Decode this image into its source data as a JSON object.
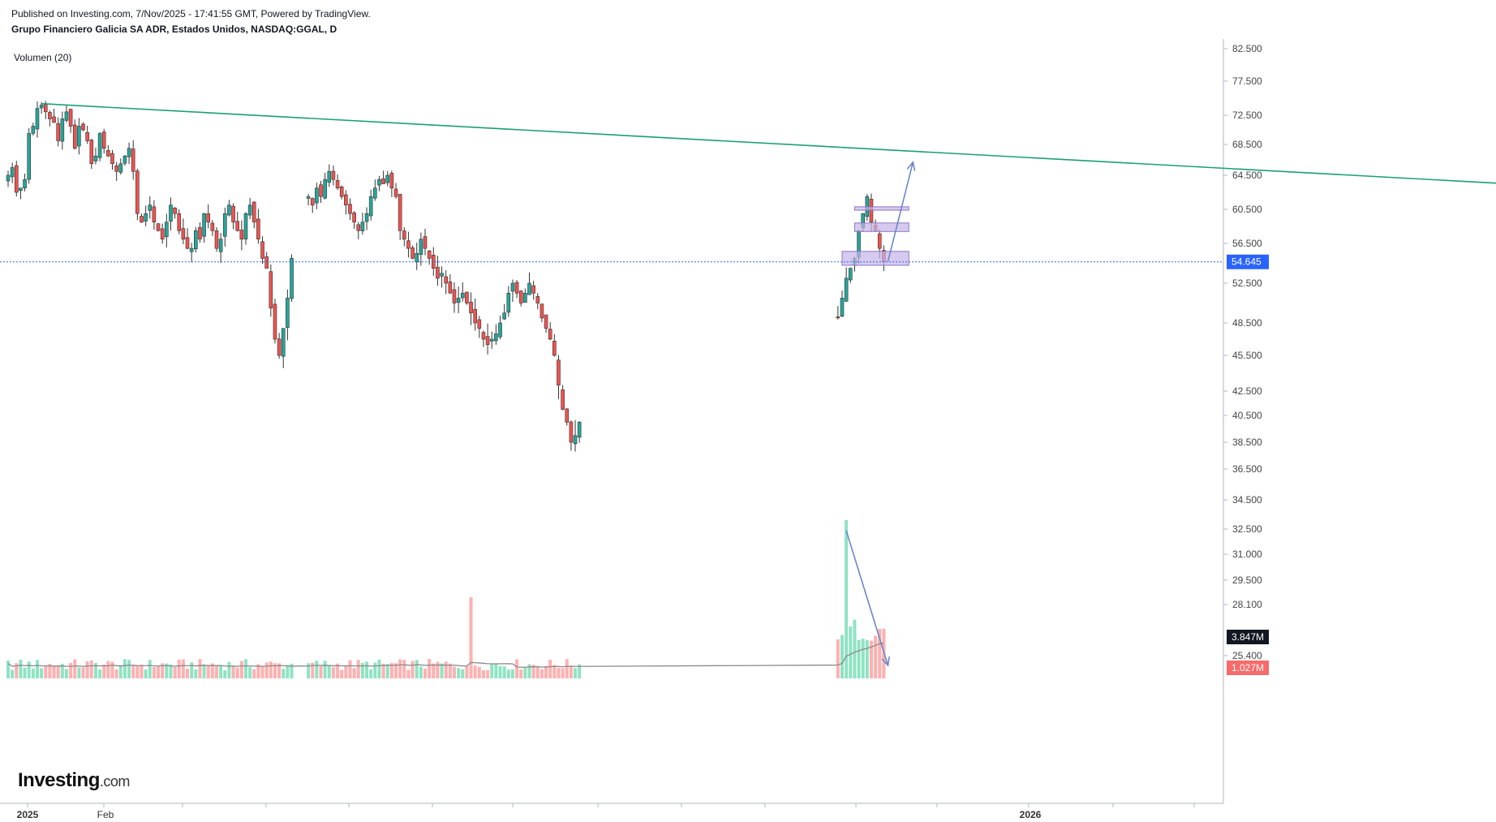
{
  "header": {
    "published": "Published on Investing.com, 7/Nov/2025 - 17:41:55 GMT, Powered by TradingView.",
    "symbol": "Grupo Financiero Galicia SA ADR, Estados Unidos, NASDAQ:GGAL, D"
  },
  "volume_label": "Volumen (20)",
  "logo": {
    "main": "Investing",
    "suffix": ".com"
  },
  "colors": {
    "up": "#26a69a",
    "down": "#ef5350",
    "vol_up": "#8fe3c3",
    "vol_down": "#ffb0b0",
    "trendline": "#1b9e77",
    "arrow": "#6b86c9",
    "box_fill": "#c5b5e8",
    "box_stroke": "#8f74c4",
    "price_tag": "#2962ff",
    "vol_tag": "#131722",
    "vol_down_tag": "#f76b6b",
    "grid": "#e6e6e6"
  },
  "chart_data": {
    "type": "candlestick",
    "title": "Grupo Financiero Galicia SA ADR, Estados Unidos, NASDAQ:GGAL, D",
    "price_axis_ticks": [
      "82.500",
      "77.500",
      "72.500",
      "68.500",
      "64.500",
      "60.500",
      "56.500",
      "52.500",
      "48.500",
      "45.500",
      "42.500",
      "40.500",
      "38.500",
      "36.500",
      "34.500",
      "32.500",
      "31.000",
      "29.500",
      "28.100",
      "25.400"
    ],
    "x_axis_ticks": [
      "2025",
      "Feb",
      "2026"
    ],
    "last_price": "54.645",
    "volume_labels": [
      "3.847M",
      "1.027M"
    ],
    "volume_indicator": "Volumen (20)",
    "segments": [
      {
        "start": 0,
        "values": [
          64.5,
          65.5,
          62.5,
          63,
          64,
          70,
          71,
          73.5,
          74,
          73,
          72,
          71.5,
          69,
          72,
          73,
          71,
          68,
          71,
          70.5,
          69,
          66,
          67,
          70,
          68,
          67,
          66,
          65,
          66,
          67,
          68,
          65,
          60,
          59,
          60,
          61,
          59,
          58,
          57,
          59,
          61,
          60,
          58,
          57,
          56,
          56,
          58,
          57,
          60,
          59,
          58,
          56,
          57,
          60,
          61,
          59,
          58,
          57,
          60,
          61,
          59,
          57,
          55,
          54,
          50,
          47,
          45.5,
          48,
          51,
          55
        ]
      },
      {
        "start": 72,
        "values": [
          62,
          61,
          63,
          62,
          64,
          65,
          64,
          63,
          62,
          61,
          60,
          59,
          58,
          59,
          60,
          62,
          63,
          64,
          63.5,
          64.5,
          63,
          62,
          58,
          57,
          56,
          55,
          55.5,
          57,
          56,
          55,
          54,
          53,
          53.5,
          52.5,
          51.5,
          50.5,
          51,
          51.5,
          50.5,
          49.5,
          48.5,
          48,
          47,
          46.5,
          47,
          47.5,
          48.5,
          49.5,
          51.5,
          52.5,
          51.5,
          50.5,
          51.5,
          52.5,
          51.5,
          50.5,
          49,
          48,
          47,
          45.5,
          43,
          41,
          40,
          38.5,
          39,
          40
        ]
      },
      {
        "start": 199,
        "values": [
          49,
          51,
          53,
          54,
          55,
          58,
          60,
          62,
          59,
          58,
          56,
          54.645
        ]
      }
    ],
    "trendline": {
      "x_index": [
        8,
        999
      ],
      "y": [
        74.2,
        47.9
      ]
    },
    "arrows": [
      {
        "x_index": [
          211,
          217
        ],
        "y": [
          54.7,
          66.2
        ]
      },
      {
        "x_index": [
          201,
          211
        ],
        "y": [
          32.4,
          24.8
        ]
      }
    ],
    "zones": [
      {
        "x_index": [
          200,
          216
        ],
        "y": [
          54.3,
          55.7
        ]
      },
      {
        "x_index": [
          203,
          216
        ],
        "y": [
          57.9,
          58.9
        ]
      },
      {
        "x_index": [
          203,
          216
        ],
        "y": [
          60.4,
          60.8
        ]
      }
    ],
    "ylim": [
      24.0,
      84.0
    ],
    "grid": true,
    "legend": "none"
  }
}
